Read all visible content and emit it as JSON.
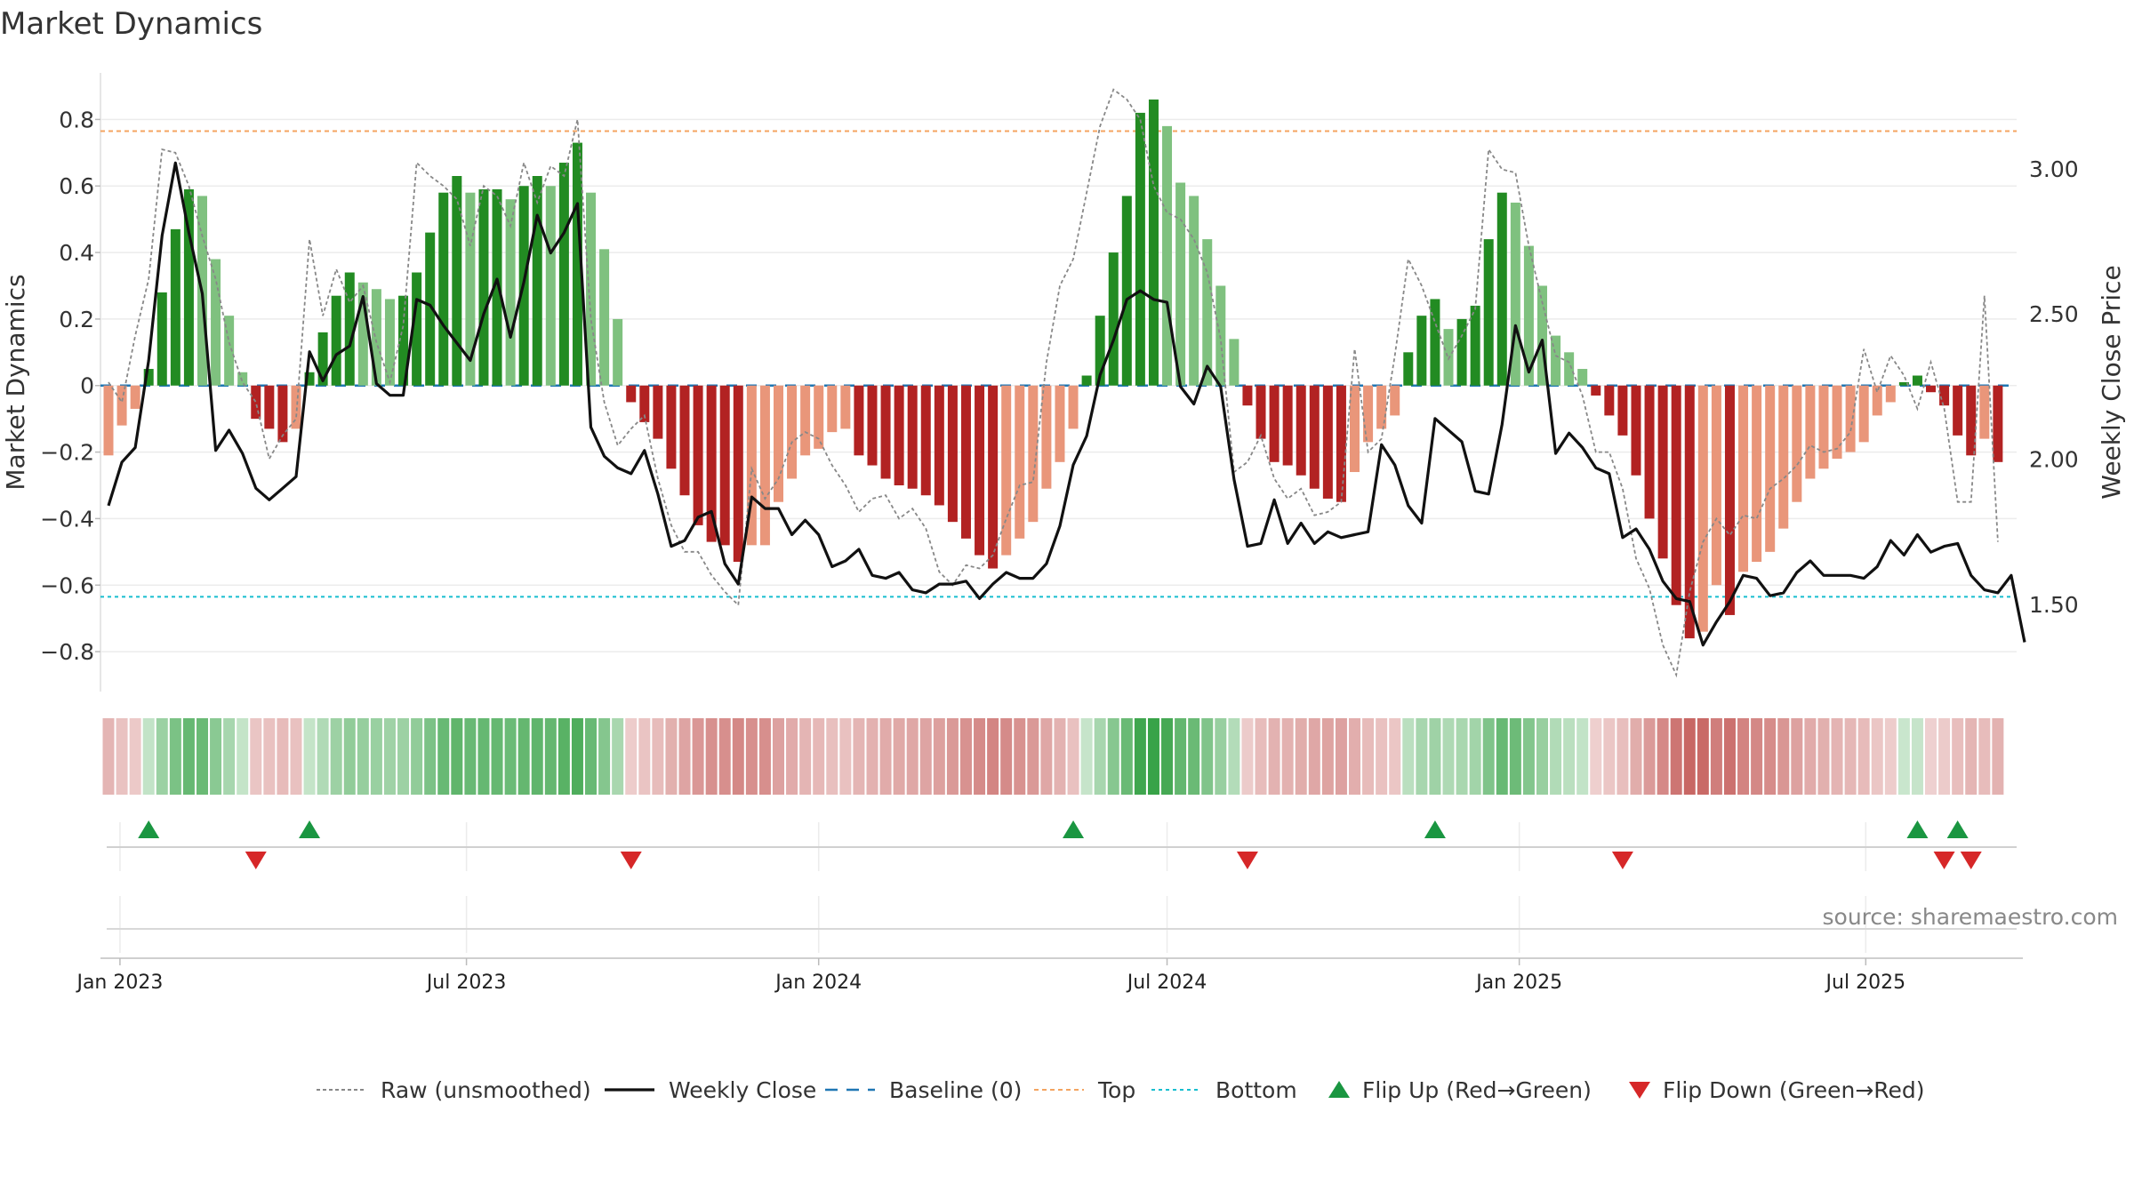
{
  "chart_data": {
    "type": "bar",
    "title": "Market Dynamics",
    "ylabel": "Market Dynamics",
    "y2label": "Weekly Close Price",
    "source": "source: sharemaestro.com",
    "ylim": [
      -0.92,
      0.94
    ],
    "y2lim": [
      1.2,
      3.33
    ],
    "yticks": [
      {
        "v": 0.8,
        "label": "0.8"
      },
      {
        "v": 0.6,
        "label": "0.6"
      },
      {
        "v": 0.4,
        "label": "0.4"
      },
      {
        "v": 0.2,
        "label": "0.2"
      },
      {
        "v": 0,
        "label": "0"
      },
      {
        "v": -0.2,
        "label": "−0.2"
      },
      {
        "v": -0.4,
        "label": "−0.4"
      },
      {
        "v": -0.6,
        "label": "−0.6"
      },
      {
        "v": -0.8,
        "label": "−0.8"
      }
    ],
    "y2ticks": [
      {
        "v": 3.0,
        "label": "3.00"
      },
      {
        "v": 2.5,
        "label": "2.50"
      },
      {
        "v": 2.0,
        "label": "2.00"
      },
      {
        "v": 1.5,
        "label": "1.50"
      }
    ],
    "xticks": [
      {
        "date": "2023-01-01",
        "label": "Jan 2023"
      },
      {
        "date": "2023-07-01",
        "label": "Jul 2023"
      },
      {
        "date": "2024-01-01",
        "label": "Jan 2024"
      },
      {
        "date": "2024-07-01",
        "label": "Jul 2024"
      },
      {
        "date": "2025-01-01",
        "label": "Jan 2025"
      },
      {
        "date": "2025-07-01",
        "label": "Jul 2025"
      }
    ],
    "start_week": "2022-12-26",
    "weeks": 144,
    "top": 0.765,
    "bottom": -0.635,
    "grid": true,
    "legend_position": "bottom",
    "colors": {
      "pos_strong": "#228b22",
      "pos_weak": "#7fc17f",
      "neg_strong": "#b22222",
      "neg_weak": "#e9967a",
      "close": "#111111",
      "raw": "#888888",
      "baseline": "#1f77b4",
      "top": "#f4a460",
      "bottom": "#17becf",
      "flip_up": "#1a9641",
      "flip_down": "#d62728"
    },
    "legend": [
      {
        "label": "Raw (unsmoothed)",
        "kind": "raw"
      },
      {
        "label": "Weekly Close",
        "kind": "close"
      },
      {
        "label": "Baseline (0)",
        "kind": "baseline"
      },
      {
        "label": "Top",
        "kind": "top"
      },
      {
        "label": "Bottom",
        "kind": "bottom"
      },
      {
        "label": "Flip Up (Red→Green)",
        "kind": "up"
      },
      {
        "label": "Flip Down (Green→Red)",
        "kind": "down"
      }
    ],
    "flip_up_weeks": [
      3,
      15,
      72,
      99,
      135,
      138
    ],
    "flip_down_weeks": [
      11,
      39,
      85,
      113,
      137,
      139
    ],
    "dynamics": [
      -0.21,
      -0.12,
      -0.07,
      0.05,
      0.28,
      0.47,
      0.59,
      0.57,
      0.38,
      0.21,
      0.04,
      -0.1,
      -0.13,
      -0.17,
      -0.13,
      0.04,
      0.16,
      0.27,
      0.34,
      0.31,
      0.29,
      0.26,
      0.27,
      0.34,
      0.46,
      0.58,
      0.63,
      0.58,
      0.59,
      0.59,
      0.56,
      0.6,
      0.63,
      0.6,
      0.67,
      0.73,
      0.58,
      0.41,
      0.2,
      -0.05,
      -0.11,
      -0.16,
      -0.25,
      -0.33,
      -0.42,
      -0.47,
      -0.48,
      -0.53,
      -0.48,
      -0.48,
      -0.35,
      -0.28,
      -0.21,
      -0.19,
      -0.14,
      -0.13,
      -0.21,
      -0.24,
      -0.28,
      -0.3,
      -0.31,
      -0.33,
      -0.36,
      -0.41,
      -0.46,
      -0.51,
      -0.55,
      -0.51,
      -0.46,
      -0.41,
      -0.31,
      -0.23,
      -0.13,
      0.03,
      0.21,
      0.4,
      0.57,
      0.82,
      0.86,
      0.78,
      0.61,
      0.57,
      0.44,
      0.3,
      0.14,
      -0.06,
      -0.16,
      -0.23,
      -0.24,
      -0.27,
      -0.31,
      -0.34,
      -0.35,
      -0.26,
      -0.17,
      -0.13,
      -0.09,
      0.1,
      0.21,
      0.26,
      0.17,
      0.2,
      0.24,
      0.44,
      0.58,
      0.55,
      0.42,
      0.3,
      0.15,
      0.1,
      0.05,
      -0.03,
      -0.09,
      -0.15,
      -0.27,
      -0.4,
      -0.52,
      -0.66,
      -0.76,
      -0.74,
      -0.6,
      -0.69,
      -0.56,
      -0.53,
      -0.5,
      -0.43,
      -0.35,
      -0.28,
      -0.25,
      -0.22,
      -0.2,
      -0.17,
      -0.09,
      -0.05,
      0.01,
      0.03,
      -0.02,
      -0.06,
      -0.15,
      -0.21,
      -0.16,
      -0.23
    ],
    "raw": [
      0.01,
      -0.05,
      0.15,
      0.32,
      0.71,
      0.7,
      0.6,
      0.45,
      0.32,
      0.13,
      0.01,
      -0.05,
      -0.22,
      -0.15,
      -0.1,
      0.44,
      0.21,
      0.35,
      0.25,
      0.3,
      0.13,
      0.01,
      0.18,
      0.67,
      0.63,
      0.6,
      0.56,
      0.42,
      0.6,
      0.57,
      0.48,
      0.67,
      0.55,
      0.66,
      0.63,
      0.8,
      0.2,
      -0.05,
      -0.18,
      -0.13,
      -0.09,
      -0.28,
      -0.42,
      -0.5,
      -0.5,
      -0.57,
      -0.62,
      -0.66,
      -0.25,
      -0.34,
      -0.28,
      -0.17,
      -0.14,
      -0.16,
      -0.24,
      -0.3,
      -0.38,
      -0.34,
      -0.33,
      -0.4,
      -0.37,
      -0.43,
      -0.56,
      -0.6,
      -0.54,
      -0.55,
      -0.51,
      -0.4,
      -0.3,
      -0.29,
      0.07,
      0.3,
      0.38,
      0.58,
      0.78,
      0.89,
      0.86,
      0.8,
      0.6,
      0.52,
      0.5,
      0.44,
      0.34,
      0.14,
      -0.26,
      -0.23,
      -0.15,
      -0.28,
      -0.34,
      -0.31,
      -0.39,
      -0.38,
      -0.35,
      0.11,
      -0.2,
      -0.16,
      0.09,
      0.38,
      0.3,
      0.19,
      0.08,
      0.15,
      0.23,
      0.71,
      0.65,
      0.64,
      0.42,
      0.25,
      0.09,
      0.07,
      -0.03,
      -0.2,
      -0.2,
      -0.31,
      -0.52,
      -0.61,
      -0.78,
      -0.87,
      -0.62,
      -0.47,
      -0.4,
      -0.45,
      -0.39,
      -0.4,
      -0.31,
      -0.28,
      -0.24,
      -0.18,
      -0.2,
      -0.19,
      -0.14,
      0.11,
      -0.02,
      0.09,
      0.03,
      -0.07,
      0.07,
      -0.07,
      -0.35,
      -0.35,
      0.27,
      -0.47
    ],
    "close": [
      1.84,
      1.99,
      2.04,
      2.34,
      2.77,
      3.02,
      2.78,
      2.57,
      2.03,
      2.1,
      2.02,
      1.9,
      1.86,
      1.9,
      1.94,
      2.37,
      2.27,
      2.36,
      2.39,
      2.56,
      2.26,
      2.22,
      2.22,
      2.55,
      2.53,
      2.46,
      2.4,
      2.34,
      2.5,
      2.62,
      2.42,
      2.61,
      2.84,
      2.71,
      2.78,
      2.88,
      2.11,
      2.01,
      1.97,
      1.95,
      2.03,
      1.88,
      1.7,
      1.72,
      1.8,
      1.82,
      1.64,
      1.57,
      1.87,
      1.83,
      1.83,
      1.74,
      1.79,
      1.74,
      1.63,
      1.65,
      1.69,
      1.6,
      1.59,
      1.61,
      1.55,
      1.54,
      1.57,
      1.57,
      1.58,
      1.52,
      1.57,
      1.61,
      1.59,
      1.59,
      1.64,
      1.77,
      1.98,
      2.08,
      2.29,
      2.41,
      2.55,
      2.58,
      2.55,
      2.54,
      2.25,
      2.19,
      2.32,
      2.25,
      1.93,
      1.7,
      1.71,
      1.86,
      1.71,
      1.78,
      1.71,
      1.75,
      1.73,
      1.74,
      1.75,
      2.05,
      1.98,
      1.84,
      1.78,
      2.14,
      2.1,
      2.06,
      1.89,
      1.88,
      2.12,
      2.46,
      2.3,
      2.41,
      2.02,
      2.09,
      2.04,
      1.97,
      1.95,
      1.73,
      1.76,
      1.69,
      1.58,
      1.52,
      1.51,
      1.36,
      1.44,
      1.51,
      1.6,
      1.59,
      1.53,
      1.54,
      1.61,
      1.65,
      1.6,
      1.6,
      1.6,
      1.59,
      1.63,
      1.72,
      1.67,
      1.74,
      1.68,
      1.7,
      1.71,
      1.6,
      1.55,
      1.54,
      1.6,
      1.37
    ]
  }
}
